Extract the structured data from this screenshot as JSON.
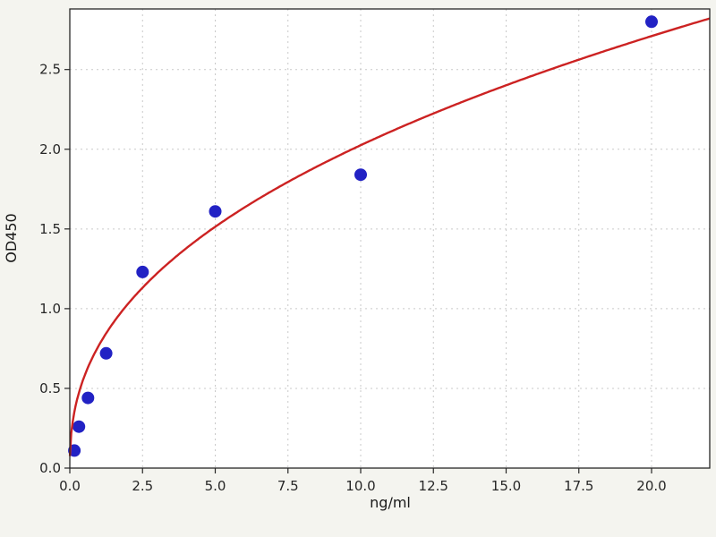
{
  "figure": {
    "background": "#f4f4ef",
    "plot_background": "#ffffff",
    "grid_color": "#c9c9c9",
    "axis_color": "#262626"
  },
  "chart_data": {
    "type": "scatter",
    "xlabel": "ng/ml",
    "ylabel": "OD450",
    "xlim": [
      0,
      22
    ],
    "ylim": [
      0,
      2.88
    ],
    "grid": true,
    "x_ticks": [
      0.0,
      2.5,
      5.0,
      7.5,
      10.0,
      12.5,
      15.0,
      17.5,
      20.0
    ],
    "x_tick_labels": [
      "0.0",
      "2.5",
      "5.0",
      "7.5",
      "10.0",
      "12.5",
      "15.0",
      "17.5",
      "20.0"
    ],
    "y_ticks": [
      0.0,
      0.5,
      1.0,
      1.5,
      2.0,
      2.5
    ],
    "y_tick_labels": [
      "0.0",
      "0.5",
      "1.0",
      "1.5",
      "2.0",
      "2.5"
    ],
    "series": [
      {
        "name": "standard-points",
        "type": "scatter",
        "color": "#2222c4",
        "marker_radius": 7,
        "x": [
          0.156,
          0.313,
          0.625,
          1.25,
          2.5,
          5,
          10,
          20
        ],
        "y": [
          0.11,
          0.26,
          0.44,
          0.72,
          1.23,
          1.61,
          1.84,
          2.8
        ]
      },
      {
        "name": "fit-curve",
        "type": "line",
        "color": "#cc2222",
        "stroke_width": 2.4,
        "fit": {
          "model": "power",
          "a": 0.77,
          "b": 0.42
        }
      }
    ]
  }
}
